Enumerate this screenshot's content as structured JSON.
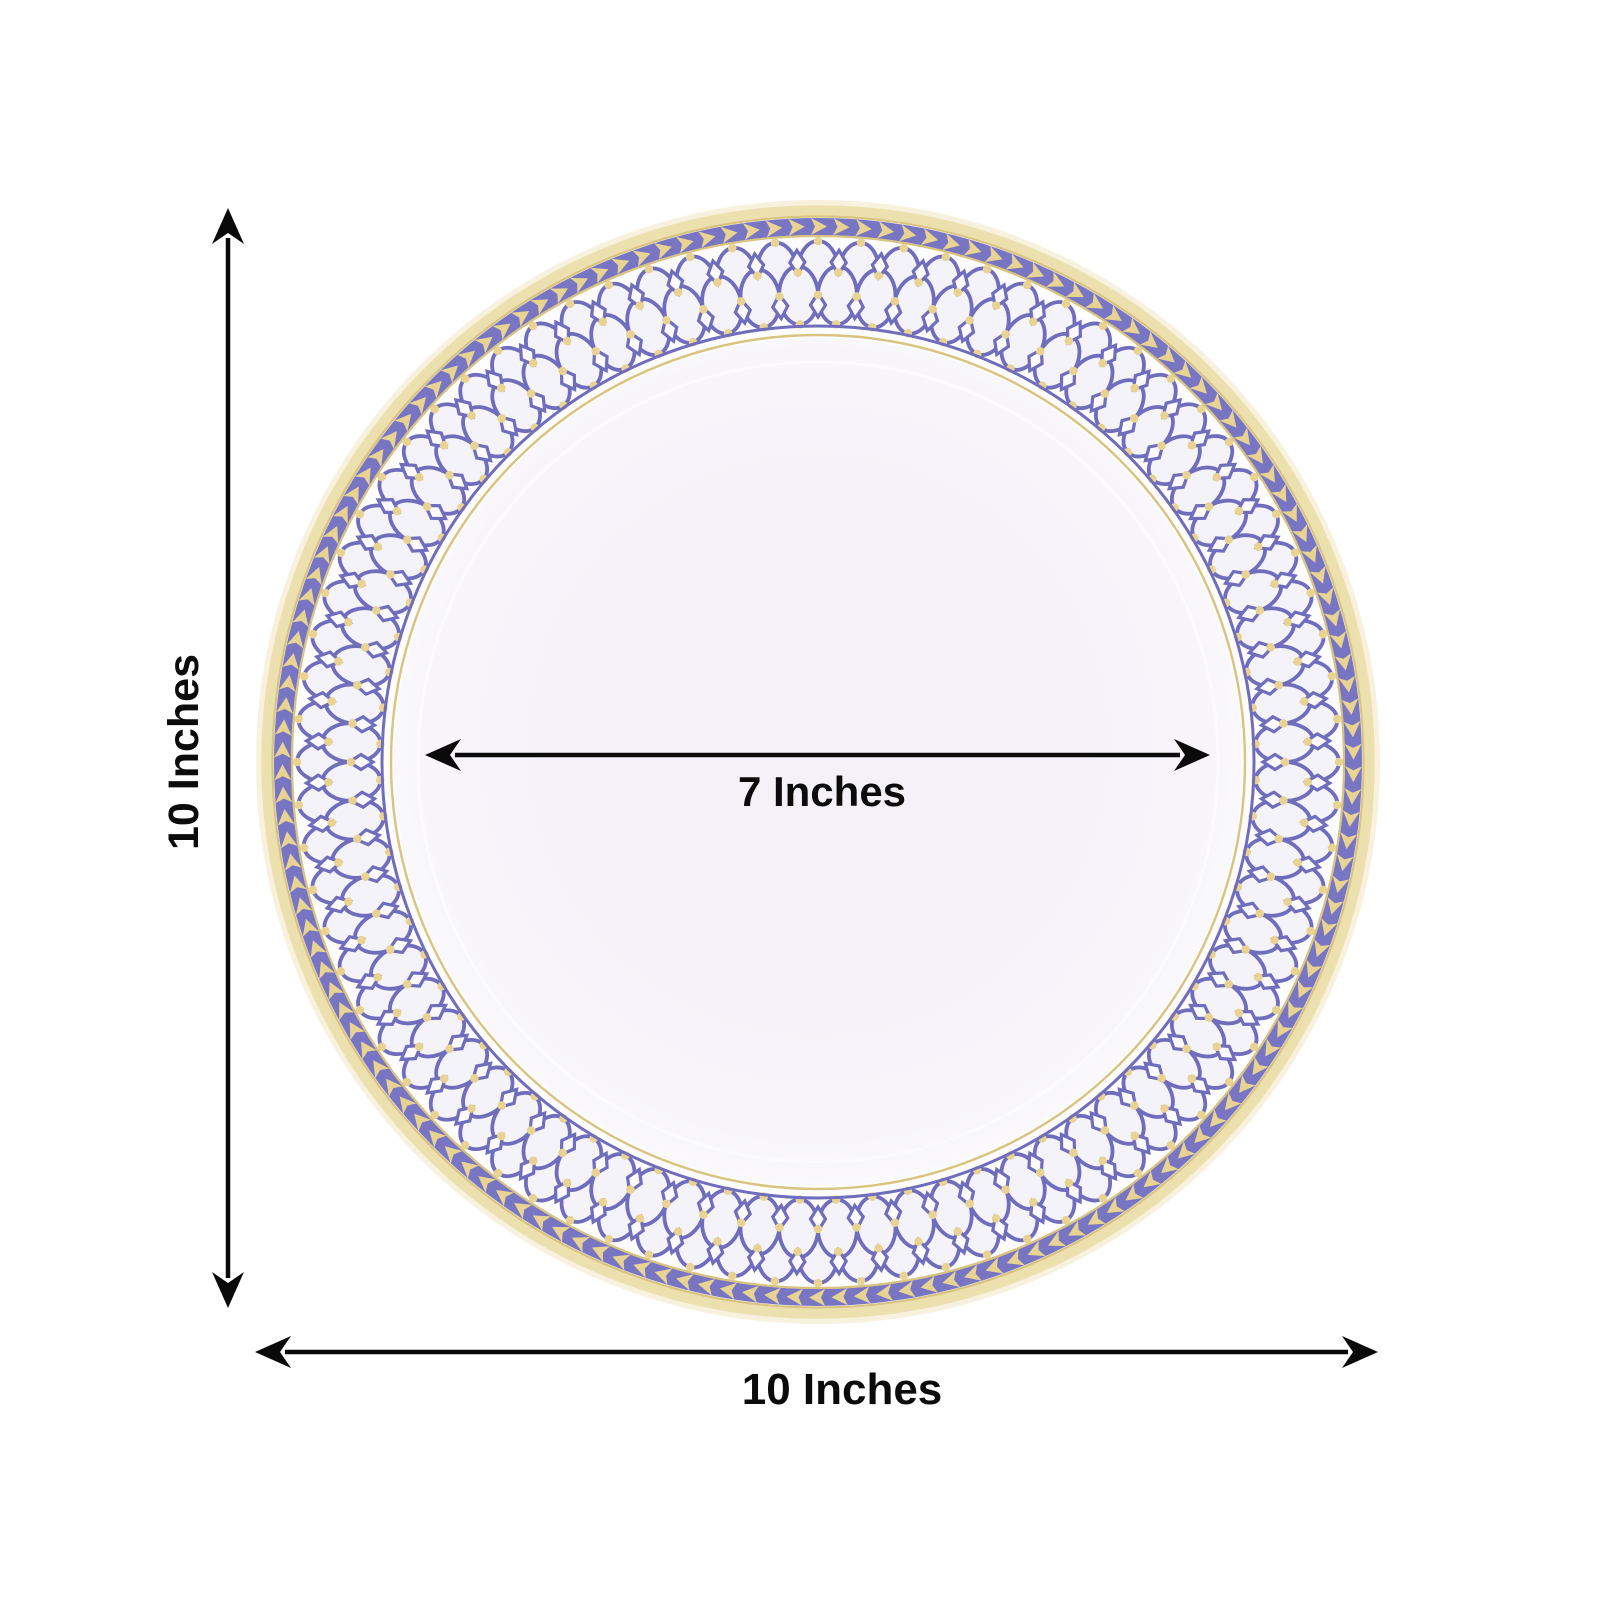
{
  "image": {
    "type": "product-dimension-diagram",
    "subject": "round dinner plate with decorative rim"
  },
  "annotations": {
    "height": {
      "label": "10 Inches"
    },
    "width": {
      "label": "10 Inches"
    },
    "well_diameter": {
      "label": "7 Inches"
    }
  },
  "plate": {
    "colors": {
      "lattice_blue": "#6F6DBC",
      "band_periwinkle": "#7876C3",
      "gold": "#E9D393",
      "gold_line": "#D9C37E",
      "cream_edge": "#EDE0AF",
      "halo": "#F7F1DE",
      "rim_white": "#FDFDFF",
      "well_tint": "#F4F2F8",
      "oval_fill": "#F4F3FA"
    },
    "pattern": {
      "lattice_ovals_per_row": 76,
      "lattice_rows": 2,
      "laurel_chevrons": 150,
      "diamond_rings": 2,
      "dot_rings": 4
    }
  },
  "arrow_style": {
    "color": "#0a0a0a"
  }
}
